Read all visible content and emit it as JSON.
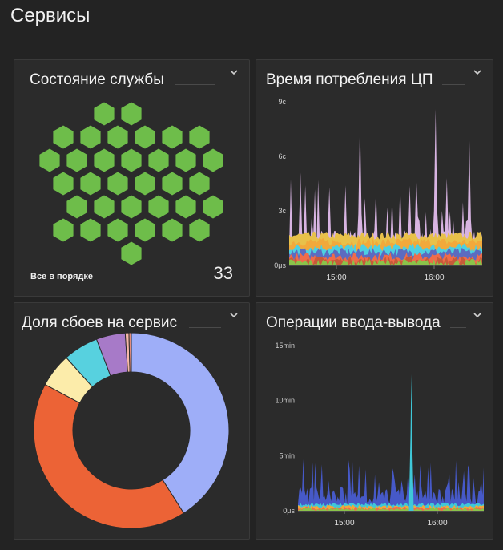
{
  "page": {
    "title": "Сервисы"
  },
  "cards": {
    "health": {
      "title": "Состояние службы",
      "status": "Все в порядке",
      "count": "33",
      "ok_color": "#6ebd4a"
    },
    "cpu": {
      "title": "Время потребления ЦП"
    },
    "failures": {
      "title": "Доля сбоев на сервис"
    },
    "io": {
      "title": "Операции ввода-вывода"
    }
  },
  "icons": {
    "menu": "chevron-down-icon"
  },
  "chart_data": [
    {
      "type": "area",
      "card": "cpu",
      "y_tick_labels": [
        "0μs",
        "3c",
        "6c",
        "9c"
      ],
      "x_tick_labels": [
        "15:00",
        "16:00"
      ],
      "ylim": [
        0,
        9
      ],
      "grid": false,
      "spike_series": {
        "color": "#d8b4e2",
        "peaks": [
          {
            "x": 0.06,
            "y": 5.1
          },
          {
            "x": 0.21,
            "y": 4.3
          },
          {
            "x": 0.29,
            "y": 4.4
          },
          {
            "x": 0.37,
            "y": 8.1
          },
          {
            "x": 0.45,
            "y": 4.0
          },
          {
            "x": 0.53,
            "y": 3.8
          },
          {
            "x": 0.66,
            "y": 4.9
          },
          {
            "x": 0.76,
            "y": 8.6
          },
          {
            "x": 0.93,
            "y": 7.1
          }
        ]
      },
      "series_colors": [
        "#e8c14a",
        "#f2a93b",
        "#4dd0e1",
        "#5c6bc0",
        "#ef6c4a",
        "#c75b3a",
        "#8bc34a"
      ]
    },
    {
      "type": "pie",
      "card": "failures",
      "donut": true,
      "slices": [
        {
          "value": 41.0,
          "color": "#9eaef8"
        },
        {
          "value": 41.8,
          "color": "#ec6336"
        },
        {
          "value": 5.6,
          "color": "#fcecaa"
        },
        {
          "value": 5.8,
          "color": "#57d1df"
        },
        {
          "value": 4.8,
          "color": "#a77ac8"
        },
        {
          "value": 0.6,
          "color": "#f7b8a8"
        },
        {
          "value": 0.4,
          "color": "#e58d7a"
        }
      ]
    },
    {
      "type": "area",
      "card": "io",
      "y_tick_labels": [
        "0μs",
        "5min",
        "10min",
        "15min"
      ],
      "x_tick_labels": [
        "15:00",
        "16:00"
      ],
      "ylim": [
        0,
        15
      ],
      "grid": false,
      "spike": {
        "x": 0.61,
        "y": 12.4,
        "color": "#3fc8d8"
      },
      "series_colors": [
        "#4659c8",
        "#3fc8d8",
        "#f2a93b",
        "#ef6c4a",
        "#8bc34a"
      ]
    }
  ]
}
